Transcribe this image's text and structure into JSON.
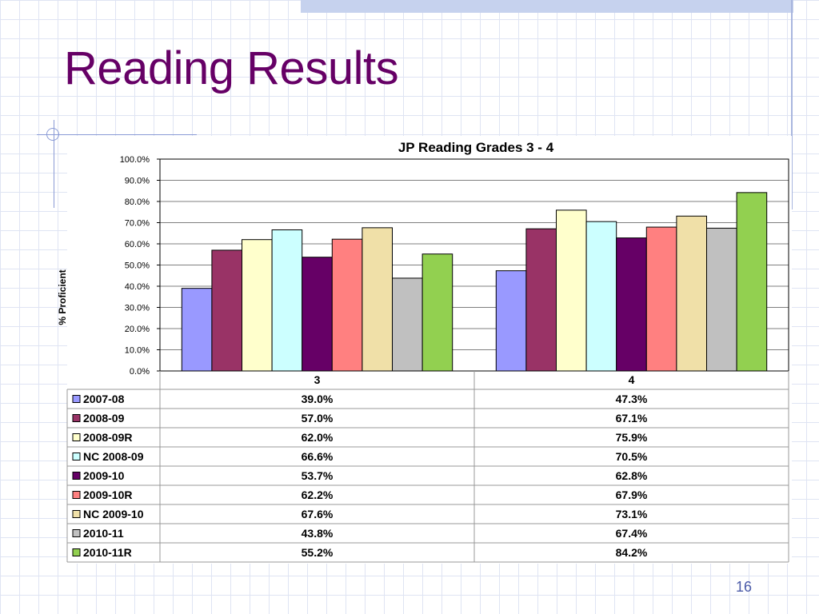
{
  "slide": {
    "title": "Reading Results",
    "page_number": "16"
  },
  "chart_data": {
    "type": "bar",
    "title": "JP Reading Grades 3 - 4",
    "ylabel": "% Proficient",
    "xlabel": "",
    "ylim": [
      0,
      100
    ],
    "y_ticks": [
      "0.0%",
      "10.0%",
      "20.0%",
      "30.0%",
      "40.0%",
      "50.0%",
      "60.0%",
      "70.0%",
      "80.0%",
      "90.0%",
      "100.0%"
    ],
    "categories": [
      "3",
      "4"
    ],
    "grid": true,
    "legend": "data-table",
    "series": [
      {
        "name": "2007-08",
        "color": "#9999ff",
        "values": [
          39.0,
          47.3
        ],
        "labels": [
          "39.0%",
          "47.3%"
        ]
      },
      {
        "name": "2008-09",
        "color": "#993366",
        "values": [
          57.0,
          67.1
        ],
        "labels": [
          "57.0%",
          "67.1%"
        ]
      },
      {
        "name": "2008-09R",
        "color": "#ffffcc",
        "values": [
          62.0,
          75.9
        ],
        "labels": [
          "62.0%",
          "75.9%"
        ]
      },
      {
        "name": "NC 2008-09",
        "color": "#ccffff",
        "values": [
          66.6,
          70.5
        ],
        "labels": [
          "66.6%",
          "70.5%"
        ]
      },
      {
        "name": "2009-10",
        "color": "#660066",
        "values": [
          53.7,
          62.8
        ],
        "labels": [
          "53.7%",
          "62.8%"
        ]
      },
      {
        "name": "2009-10R",
        "color": "#ff8080",
        "values": [
          62.2,
          67.9
        ],
        "labels": [
          "62.2%",
          "67.9%"
        ]
      },
      {
        "name": "NC 2009-10",
        "color": "#f0e0a8",
        "values": [
          67.6,
          73.1
        ],
        "labels": [
          "67.6%",
          "73.1%"
        ]
      },
      {
        "name": "2010-11",
        "color": "#c0c0c0",
        "values": [
          43.8,
          67.4
        ],
        "labels": [
          "43.8%",
          "67.4%"
        ]
      },
      {
        "name": "2010-11R",
        "color": "#92d050",
        "values": [
          55.2,
          84.2
        ],
        "labels": [
          "55.2%",
          "84.2%"
        ]
      }
    ]
  }
}
